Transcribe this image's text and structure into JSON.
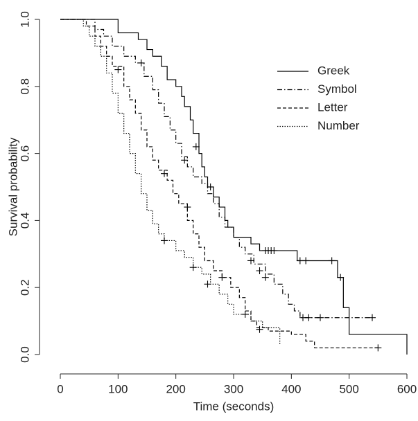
{
  "chart_data": {
    "type": "step",
    "x_label": "Time (seconds)",
    "y_label": "Survival probability",
    "xlim": [
      0,
      600
    ],
    "ylim": [
      0,
      1
    ],
    "xticks": [
      0,
      100,
      200,
      300,
      400,
      500,
      600
    ],
    "yticks": [
      {
        "value": 0,
        "label": "0.0"
      },
      0.2,
      0.4,
      0.6,
      0.8,
      {
        "value": 1,
        "label": "1.0"
      }
    ],
    "legend": "top-right",
    "series": [
      {
        "name": "Greek",
        "color": "#000000",
        "dash": "solid",
        "x": [
          0,
          100,
          135,
          150,
          160,
          175,
          185,
          200,
          210,
          215,
          225,
          230,
          240,
          245,
          250,
          255,
          265,
          275,
          285,
          290,
          300,
          330,
          345,
          410,
          480,
          490,
          500,
          600
        ],
        "values": [
          1.0,
          0.96,
          0.94,
          0.91,
          0.89,
          0.86,
          0.82,
          0.8,
          0.77,
          0.74,
          0.7,
          0.66,
          0.6,
          0.56,
          0.53,
          0.5,
          0.47,
          0.44,
          0.4,
          0.38,
          0.35,
          0.33,
          0.31,
          0.28,
          0.23,
          0.14,
          0.06,
          0.0
        ],
        "censor_x": [
          235,
          260,
          355,
          360,
          365,
          370,
          415,
          425,
          470,
          485
        ],
        "censor_y": [
          0.62,
          0.5,
          0.31,
          0.31,
          0.31,
          0.31,
          0.28,
          0.28,
          0.28,
          0.23
        ]
      },
      {
        "name": "Symbol",
        "color": "#000000",
        "dash": "dashdot",
        "x": [
          0,
          60,
          75,
          90,
          110,
          130,
          145,
          160,
          170,
          180,
          190,
          200,
          210,
          220,
          230,
          245,
          255,
          265,
          275,
          285,
          300,
          310,
          320,
          335,
          355,
          370,
          385,
          395,
          405,
          415,
          545
        ],
        "values": [
          1.0,
          0.97,
          0.95,
          0.92,
          0.89,
          0.87,
          0.83,
          0.79,
          0.75,
          0.71,
          0.67,
          0.63,
          0.59,
          0.56,
          0.53,
          0.51,
          0.48,
          0.45,
          0.41,
          0.38,
          0.35,
          0.32,
          0.3,
          0.27,
          0.24,
          0.21,
          0.18,
          0.15,
          0.13,
          0.11,
          0.11
        ],
        "censor_x": [
          140,
          215,
          330,
          345,
          355,
          420,
          430,
          450,
          540
        ],
        "censor_y": [
          0.87,
          0.58,
          0.28,
          0.25,
          0.23,
          0.11,
          0.11,
          0.11,
          0.11
        ]
      },
      {
        "name": "Letter",
        "color": "#000000",
        "dash": "dash",
        "x": [
          0,
          45,
          60,
          70,
          80,
          90,
          110,
          120,
          130,
          140,
          150,
          160,
          170,
          185,
          195,
          205,
          220,
          230,
          240,
          250,
          265,
          280,
          295,
          310,
          320,
          330,
          340,
          360,
          400,
          425,
          440,
          550
        ],
        "values": [
          1.0,
          0.98,
          0.95,
          0.92,
          0.89,
          0.86,
          0.8,
          0.76,
          0.72,
          0.67,
          0.62,
          0.58,
          0.55,
          0.52,
          0.48,
          0.45,
          0.4,
          0.36,
          0.32,
          0.28,
          0.25,
          0.23,
          0.2,
          0.17,
          0.13,
          0.1,
          0.08,
          0.07,
          0.06,
          0.04,
          0.02,
          0.02
        ],
        "censor_x": [
          100,
          180,
          220,
          280,
          320,
          345,
          550
        ],
        "censor_y": [
          0.85,
          0.54,
          0.44,
          0.23,
          0.12,
          0.075,
          0.02
        ]
      },
      {
        "name": "Number",
        "color": "#000000",
        "dash": "dot",
        "x": [
          0,
          40,
          50,
          60,
          70,
          80,
          90,
          100,
          110,
          120,
          130,
          140,
          150,
          160,
          170,
          180,
          200,
          215,
          230,
          245,
          260,
          275,
          290,
          300,
          330,
          350,
          380
        ],
        "values": [
          1.0,
          0.98,
          0.95,
          0.92,
          0.89,
          0.84,
          0.78,
          0.72,
          0.66,
          0.6,
          0.54,
          0.48,
          0.43,
          0.39,
          0.36,
          0.34,
          0.31,
          0.29,
          0.26,
          0.24,
          0.21,
          0.18,
          0.15,
          0.12,
          0.1,
          0.08,
          0.03
        ],
        "censor_x": [
          180,
          230,
          255
        ],
        "censor_y": [
          0.34,
          0.26,
          0.21
        ]
      }
    ]
  }
}
